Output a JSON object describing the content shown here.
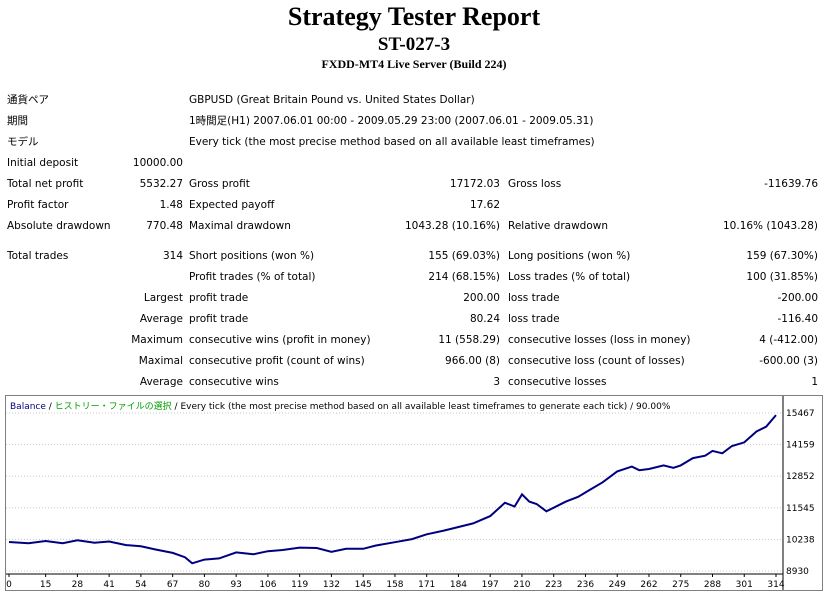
{
  "report": {
    "title": "Strategy Tester Report",
    "code": "ST-027-3",
    "server": "FXDD-MT4 Live Server (Build 224)"
  },
  "info": {
    "symbol_label": "通貨ペア",
    "symbol_value": "GBPUSD (Great Britain Pound vs. United States Dollar)",
    "period_label": "期間",
    "period_value": "1時間足(H1) 2007.06.01 00:00 - 2009.05.29 23:00 (2007.06.01 - 2009.05.31)",
    "model_label": "モデル",
    "model_value": "Every tick (the most precise method based on all available least timeframes)"
  },
  "stats": {
    "initial_deposit_label": "Initial deposit",
    "initial_deposit": "10000.00",
    "total_net_profit_label": "Total net profit",
    "total_net_profit": "5532.27",
    "gross_profit_label": "Gross profit",
    "gross_profit": "17172.03",
    "gross_loss_label": "Gross loss",
    "gross_loss": "-11639.76",
    "profit_factor_label": "Profit factor",
    "profit_factor": "1.48",
    "expected_payoff_label": "Expected payoff",
    "expected_payoff": "17.62",
    "absolute_drawdown_label": "Absolute drawdown",
    "absolute_drawdown": "770.48",
    "maximal_drawdown_label": "Maximal drawdown",
    "maximal_drawdown": "1043.28 (10.16%)",
    "relative_drawdown_label": "Relative drawdown",
    "relative_drawdown": "10.16% (1043.28)",
    "total_trades_label": "Total trades",
    "total_trades": "314",
    "short_positions_label": "Short positions (won %)",
    "short_positions": "155 (69.03%)",
    "long_positions_label": "Long positions (won %)",
    "long_positions": "159 (67.30%)",
    "profit_trades_label": "Profit trades (% of total)",
    "profit_trades": "214 (68.15%)",
    "loss_trades_label": "Loss trades (% of total)",
    "loss_trades": "100 (31.85%)",
    "largest_label": "Largest",
    "largest_profit_label": "profit trade",
    "largest_profit": "200.00",
    "largest_loss_label": "loss trade",
    "largest_loss": "-200.00",
    "average_label": "Average",
    "average_profit_label": "profit trade",
    "average_profit": "80.24",
    "average_loss_label": "loss trade",
    "average_loss": "-116.40",
    "maximum_label": "Maximum",
    "max_consec_wins_label": "consecutive wins (profit in money)",
    "max_consec_wins": "11 (558.29)",
    "max_consec_losses_label": "consecutive losses (loss in money)",
    "max_consec_losses": "4 (-412.00)",
    "maximal_label": "Maximal",
    "maximal_consec_profit_label": "consecutive profit (count of wins)",
    "maximal_consec_profit": "966.00 (8)",
    "maximal_consec_loss_label": "consecutive loss (count of losses)",
    "maximal_consec_loss": "-600.00 (3)",
    "average2_label": "Average",
    "avg_consec_wins_label": "consecutive wins",
    "avg_consec_wins": "3",
    "avg_consec_losses_label": "consecutive losses",
    "avg_consec_losses": "1"
  },
  "chart_data": {
    "type": "line",
    "legend": {
      "balance": "Balance",
      "sep1": " / ",
      "history": "ヒストリー・ファイルの選択",
      "sep2": " / ",
      "model": "Every tick (the most precise method based on all available least timeframes to generate each tick) / 90.00%"
    },
    "x_ticks": [
      "0",
      "15",
      "28",
      "41",
      "54",
      "67",
      "80",
      "93",
      "106",
      "119",
      "132",
      "145",
      "158",
      "171",
      "184",
      "197",
      "210",
      "223",
      "236",
      "249",
      "262",
      "275",
      "288",
      "301",
      "314"
    ],
    "y_ticks": [
      "15467",
      "14159",
      "12852",
      "11545",
      "10238",
      "8930"
    ],
    "xlim": [
      0,
      314
    ],
    "ylim": [
      8930,
      15467
    ],
    "colors": {
      "line": "#000080",
      "balance": "#000080",
      "history": "#00a000",
      "grid": "#c8c8c8"
    },
    "series": [
      {
        "x": [
          0,
          8,
          15,
          22,
          28,
          35,
          41,
          48,
          54,
          60,
          67,
          72,
          75,
          80,
          86,
          93,
          100,
          106,
          112,
          119,
          126,
          132,
          138,
          145,
          150,
          158,
          165,
          171,
          178,
          184,
          190,
          197,
          203,
          207,
          210,
          213,
          216,
          220,
          223,
          228,
          233,
          238,
          243,
          249,
          255,
          258,
          262,
          268,
          272,
          275,
          280,
          285,
          288,
          292,
          296,
          301,
          306,
          310,
          314
        ],
        "y": [
          10130,
          10080,
          10170,
          10080,
          10200,
          10100,
          10150,
          10000,
          9950,
          9820,
          9680,
          9500,
          9250,
          9400,
          9450,
          9700,
          9620,
          9750,
          9800,
          9900,
          9880,
          9720,
          9850,
          9850,
          9980,
          10120,
          10250,
          10450,
          10600,
          10750,
          10900,
          11200,
          11750,
          11600,
          12100,
          11800,
          11700,
          11400,
          11550,
          11800,
          12000,
          12300,
          12600,
          13050,
          13250,
          13100,
          13150,
          13300,
          13200,
          13300,
          13600,
          13700,
          13900,
          13800,
          14100,
          14250,
          14700,
          14900,
          15380
        ]
      }
    ]
  }
}
